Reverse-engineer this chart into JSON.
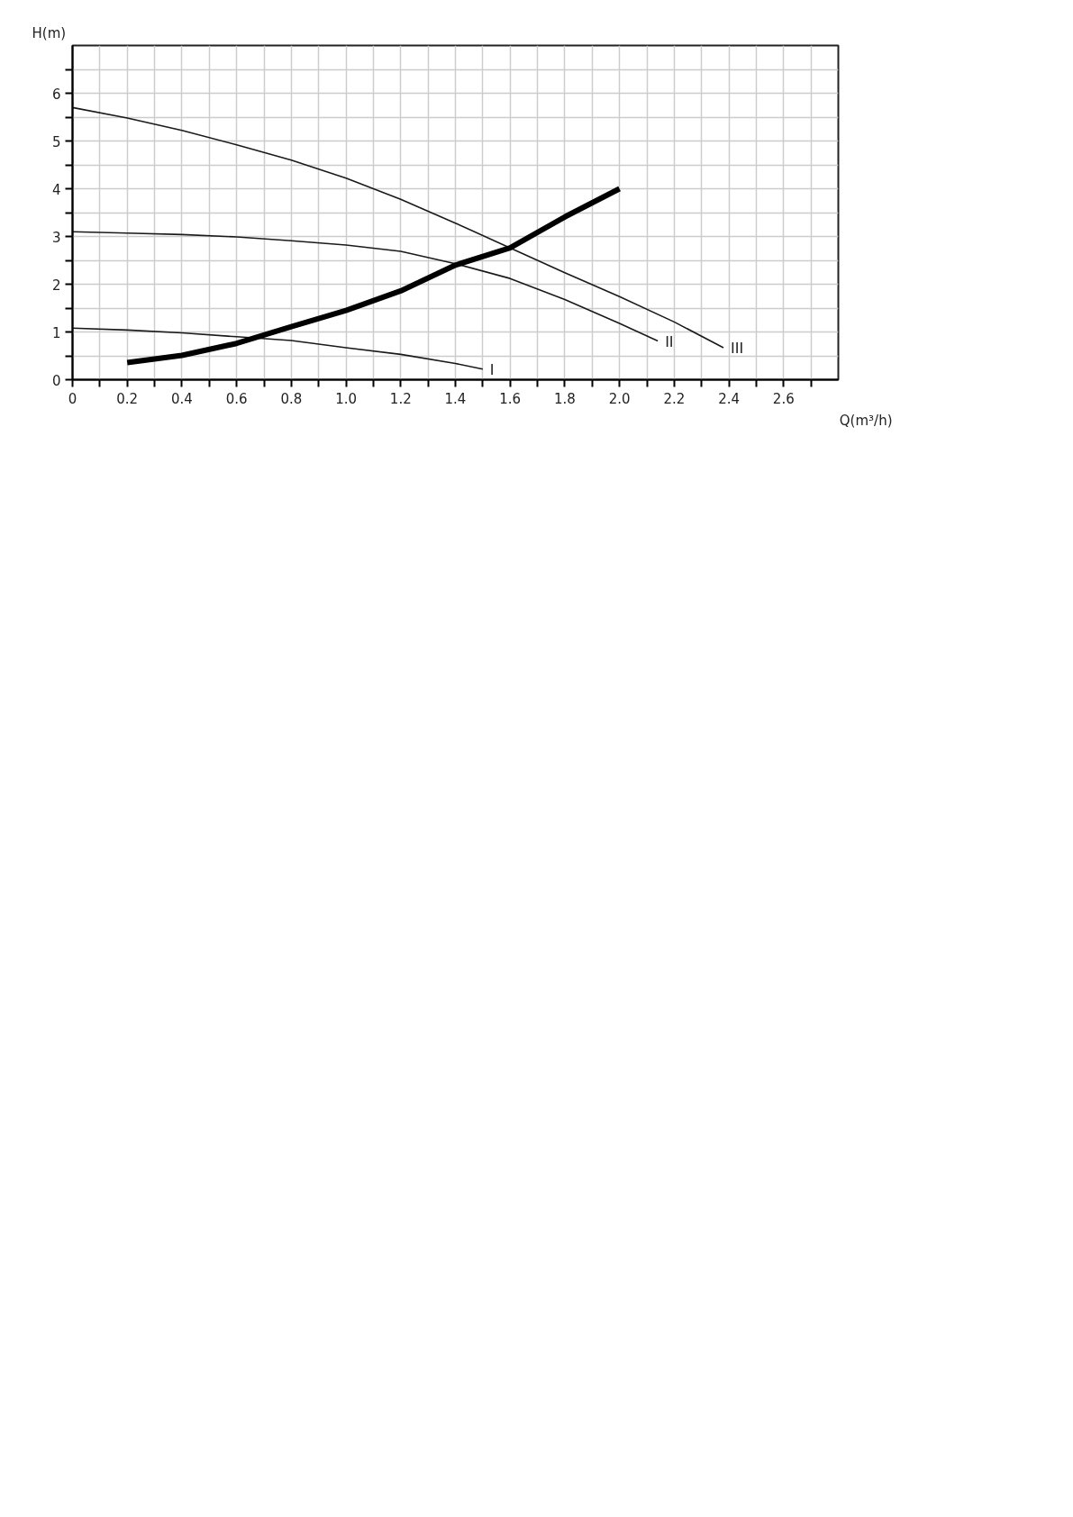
{
  "chart_data": {
    "type": "line",
    "xlabel": "Q(m³/h)",
    "ylabel": "H(m)",
    "xlim": [
      0,
      2.8
    ],
    "ylim": [
      0,
      7
    ],
    "xticks": [
      0,
      {
        "value": 0.1,
        "label": null
      },
      0.2,
      {
        "value": 0.3,
        "label": null
      },
      0.4,
      {
        "value": 0.5,
        "label": null
      },
      0.6,
      {
        "value": 0.7,
        "label": null
      },
      0.8,
      {
        "value": 0.9,
        "label": null
      },
      {
        "value": 1.0,
        "label": "1.0"
      },
      {
        "value": 1.1,
        "label": null
      },
      1.2,
      {
        "value": 1.3,
        "label": null
      },
      1.4,
      {
        "value": 1.5,
        "label": null
      },
      1.6,
      {
        "value": 1.7,
        "label": null
      },
      1.8,
      {
        "value": 1.9,
        "label": null
      },
      {
        "value": 2.0,
        "label": "2.0"
      },
      {
        "value": 2.1,
        "label": null
      },
      2.2,
      {
        "value": 2.3,
        "label": null
      },
      2.4,
      {
        "value": 2.5,
        "label": null
      },
      2.6,
      {
        "value": 2.7,
        "label": null
      }
    ],
    "yticks": [
      0,
      {
        "value": 0.5,
        "label": null
      },
      1,
      {
        "value": 1.5,
        "label": null
      },
      2,
      {
        "value": 2.5,
        "label": null
      },
      3,
      {
        "value": 3.5,
        "label": null
      },
      4,
      {
        "value": 4.5,
        "label": null
      },
      5,
      {
        "value": 5.5,
        "label": null
      },
      6,
      {
        "value": 6.5,
        "label": null
      }
    ],
    "grid": true,
    "marker": "none",
    "line_style": "solid",
    "series": [
      {
        "name": "I",
        "color": "#1a1a1a",
        "x": [
          0,
          0.2,
          0.4,
          0.6,
          0.8,
          1.0,
          1.2,
          1.4,
          1.5
        ],
        "values": [
          1.08,
          1.04,
          0.98,
          0.9,
          0.82,
          0.67,
          0.53,
          0.34,
          0.22
        ]
      },
      {
        "name": "II",
        "color": "#1a1a1a",
        "x": [
          0,
          0.2,
          0.4,
          0.6,
          0.8,
          1.0,
          1.2,
          1.4,
          1.6,
          1.8,
          2.0,
          2.14
        ],
        "values": [
          3.1,
          3.07,
          3.04,
          2.99,
          2.91,
          2.82,
          2.69,
          2.43,
          2.12,
          1.68,
          1.18,
          0.81
        ]
      },
      {
        "name": "III",
        "color": "#1a1a1a",
        "x": [
          0,
          0.2,
          0.4,
          0.6,
          0.8,
          1.0,
          1.2,
          1.4,
          1.6,
          1.8,
          2.0,
          2.2,
          2.38
        ],
        "values": [
          5.7,
          5.48,
          5.22,
          4.92,
          4.6,
          4.22,
          3.78,
          3.28,
          2.76,
          2.24,
          1.74,
          1.21,
          0.67
        ]
      },
      {
        "color": "#000000",
        "x": [
          0.2,
          0.4,
          0.6,
          0.8,
          1.0,
          1.2,
          1.4,
          1.6,
          1.8,
          2.0
        ],
        "values": [
          0.36,
          0.51,
          0.76,
          1.11,
          1.45,
          1.86,
          2.4,
          2.76,
          3.41,
          4.0
        ]
      }
    ]
  }
}
